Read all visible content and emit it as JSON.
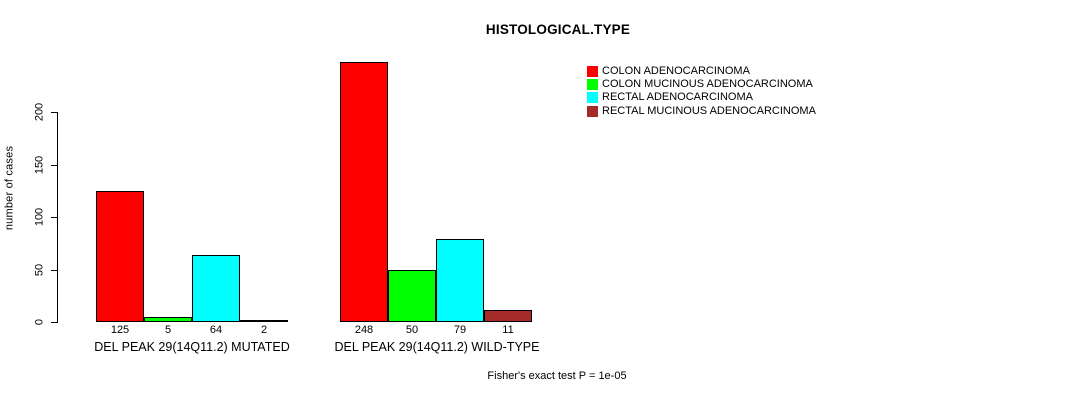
{
  "title": "HISTOLOGICAL.TYPE",
  "footnote": "Fisher's exact test P = 1e-05",
  "colors": {
    "background": "#ffffff",
    "axis": "#000000",
    "bar_border": "#000000"
  },
  "chart_data": {
    "type": "bar",
    "title": "HISTOLOGICAL.TYPE",
    "xlabel": "",
    "ylabel": "number of cases",
    "ylim": [
      0,
      200
    ],
    "yticks": [
      0,
      50,
      100,
      150,
      200
    ],
    "grid": false,
    "legend_position": "top-right",
    "bar_value_labels": true,
    "groups": [
      "DEL PEAK 29(14Q11.2) MUTATED",
      "DEL PEAK 29(14Q11.2) WILD-TYPE"
    ],
    "series": [
      {
        "name": "COLON ADENOCARCINOMA",
        "color": "#FF0000",
        "values": [
          125,
          248
        ]
      },
      {
        "name": "COLON MUCINOUS ADENOCARCINOMA",
        "color": "#00FF00",
        "values": [
          5,
          50
        ]
      },
      {
        "name": "RECTAL ADENOCARCINOMA",
        "color": "#00FFFF",
        "values": [
          64,
          79
        ]
      },
      {
        "name": "RECTAL MUCINOUS ADENOCARCINOMA",
        "color": "#A52A2A",
        "values": [
          2,
          11
        ]
      }
    ],
    "annotation": "Fisher's exact test P = 1e-05"
  }
}
